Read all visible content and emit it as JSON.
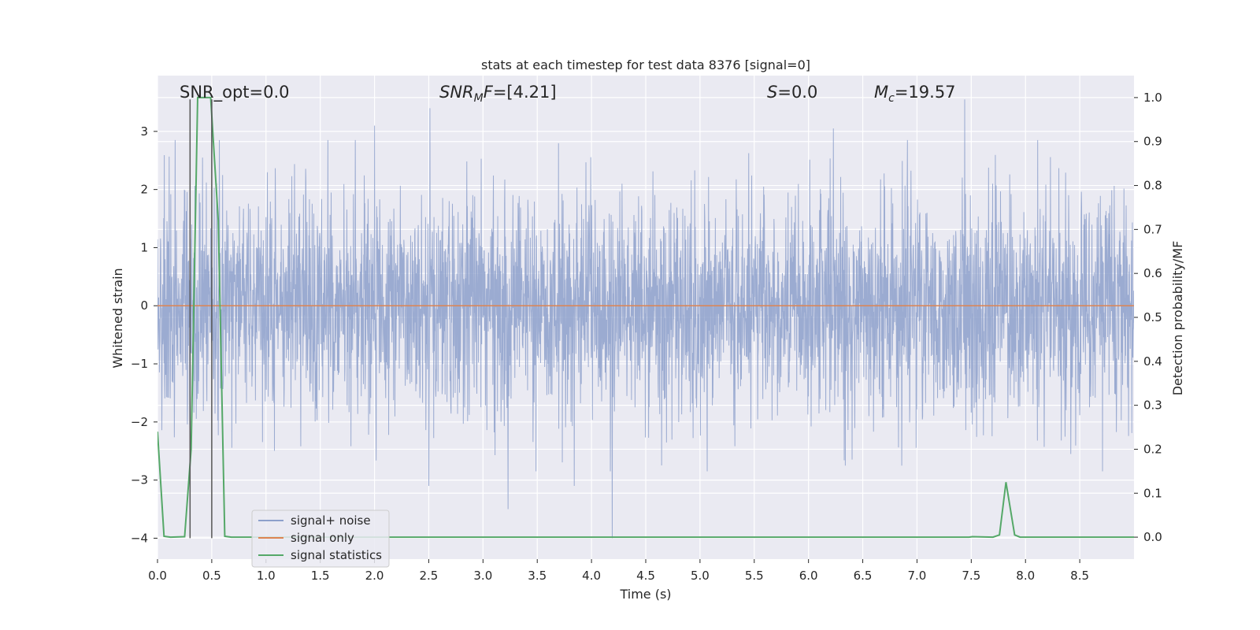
{
  "chart_data": {
    "type": "line",
    "title": "stats at each timestep for test data 8376 [signal=0]",
    "xlabel": "Time (s)",
    "ylabel_left": "Whitened strain",
    "ylabel_right": "Detection probability/MF",
    "xlim": [
      0.0,
      9.0
    ],
    "ylim_left": [
      -4.36,
      3.96
    ],
    "ylim_right": [
      -0.05,
      1.05
    ],
    "x_ticks": [
      0.0,
      0.5,
      1.0,
      1.5,
      2.0,
      2.5,
      3.0,
      3.5,
      4.0,
      4.5,
      5.0,
      5.5,
      6.0,
      6.5,
      7.0,
      7.5,
      8.0,
      8.5
    ],
    "x_tick_labels": [
      "0.0",
      "0.5",
      "1.0",
      "1.5",
      "2.0",
      "2.5",
      "3.0",
      "3.5",
      "4.0",
      "4.5",
      "5.0",
      "5.5",
      "6.0",
      "6.5",
      "7.0",
      "7.5",
      "8.0",
      "8.5"
    ],
    "y_left_ticks": [
      3,
      2,
      1,
      0,
      -1,
      -2,
      -3,
      -4
    ],
    "y_left_tick_labels": [
      "3",
      "2",
      "1",
      "0",
      "−1",
      "−2",
      "−3",
      "−4"
    ],
    "y_right_ticks": [
      1.0,
      0.9,
      0.8,
      0.7,
      0.6,
      0.5,
      0.4,
      0.3,
      0.2,
      0.1,
      0.0
    ],
    "y_right_tick_labels": [
      "1.0",
      "0.9",
      "0.8",
      "0.7",
      "0.6",
      "0.5",
      "0.4",
      "0.3",
      "0.2",
      "0.1",
      "0.0"
    ],
    "grid": true,
    "annotations": {
      "snr_opt": "SNR_opt=0.0",
      "snr_mf_base": "SNR",
      "snr_mf_sub": "M",
      "snr_mf_tail": "F",
      "snr_mf_value": "=[4.21]",
      "s_label": "S",
      "s_value": "=0.0",
      "mc_label": "M",
      "mc_sub": "c",
      "mc_value": "=19.57"
    },
    "vertical_markers_x": [
      0.3,
      0.5
    ],
    "series": [
      {
        "name": "signal+ noise",
        "color": "#8da0cb",
        "axis": "left",
        "noise_std": 0.95,
        "noise_peaks": [
          {
            "x": 2.51,
            "y": 3.4
          },
          {
            "x": 7.44,
            "y": 3.55
          },
          {
            "x": 2.0,
            "y": 3.1
          },
          {
            "x": 6.23,
            "y": 3.05
          },
          {
            "x": 4.19,
            "y": -4.0
          },
          {
            "x": 3.23,
            "y": -3.5
          },
          {
            "x": 2.5,
            "y": -3.1
          },
          {
            "x": 3.84,
            "y": -3.1
          },
          {
            "x": 6.34,
            "y": -2.75
          },
          {
            "x": 6.86,
            "y": -2.75
          }
        ]
      },
      {
        "name": "signal only",
        "color": "#dd8452",
        "axis": "left",
        "x": [
          0.0,
          9.0
        ],
        "y": [
          0.0,
          0.0
        ]
      },
      {
        "name": "signal statistics",
        "color": "#55a868",
        "axis": "right",
        "x": [
          0.0,
          0.06,
          0.12,
          0.25,
          0.31,
          0.37,
          0.43,
          0.49,
          0.56,
          0.62,
          0.68,
          7.48,
          7.51,
          7.7,
          7.76,
          7.82,
          7.9,
          7.95,
          9.0
        ],
        "y": [
          0.24,
          0.002,
          0.0,
          0.001,
          0.2,
          1.0,
          1.0,
          1.0,
          0.72,
          0.002,
          0.0,
          0.0,
          0.001,
          0.0,
          0.005,
          0.125,
          0.005,
          0.0,
          0.0
        ]
      }
    ]
  }
}
